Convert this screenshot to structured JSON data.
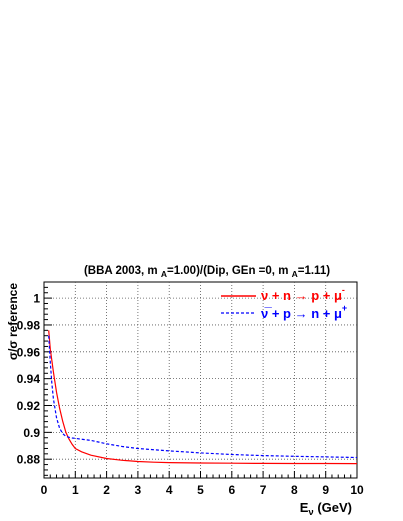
{
  "chart_data": {
    "type": "line",
    "title": "(BBA 2003, m A=1.00)/(Dip, GEn =0, m A=1.11)",
    "title_parts": {
      "pre1": "(BBA 2003, m ",
      "sub1": "A",
      "mid": "=1.00)/(Dip, GEn =0, m ",
      "sub2": "A",
      "post": "=1.11)"
    },
    "xlabel": "Eν (GeV)",
    "xlabel_parts": {
      "main": "E",
      "sub": "ν",
      "post": " (GeV)"
    },
    "ylabel": "σ/σ reference",
    "xlim": [
      0,
      10
    ],
    "ylim": [
      0.866,
      1.012
    ],
    "xticks": [
      0,
      1,
      2,
      3,
      4,
      5,
      6,
      7,
      8,
      9,
      10
    ],
    "yticks": [
      0.88,
      0.9,
      0.92,
      0.94,
      0.96,
      0.98,
      1
    ],
    "ytick_labels": [
      "0.88",
      "0.9",
      "0.92",
      "0.94",
      "0.96",
      "0.98",
      "1"
    ],
    "grid": true,
    "legend_position": "top-right",
    "series": [
      {
        "name": "ν + n → p + μ-",
        "legend_parts": [
          "ν + n → p + μ",
          "-"
        ],
        "color": "#ff0000",
        "dash": "solid",
        "x": [
          0.15,
          0.2,
          0.3,
          0.4,
          0.5,
          0.6,
          0.7,
          0.8,
          0.9,
          1.0,
          1.2,
          1.5,
          2.0,
          2.5,
          3.0,
          3.5,
          4.0,
          5.0,
          6.0,
          7.0,
          8.0,
          9.0,
          10.0
        ],
        "y": [
          0.976,
          0.962,
          0.945,
          0.93,
          0.918,
          0.908,
          0.9,
          0.895,
          0.891,
          0.888,
          0.8855,
          0.883,
          0.8805,
          0.8792,
          0.8783,
          0.8778,
          0.8775,
          0.8772,
          0.877,
          0.8769,
          0.8768,
          0.8768,
          0.8767
        ]
      },
      {
        "name": "ν̅ + p → n + μ+",
        "legend_parts": [
          "ν̅ + p → n + μ",
          "+"
        ],
        "color": "#0000ff",
        "dash": "dashed",
        "x": [
          0.15,
          0.2,
          0.25,
          0.3,
          0.4,
          0.5,
          0.6,
          0.7,
          0.8,
          0.9,
          1.0,
          1.5,
          2.0,
          2.5,
          3.0,
          4.0,
          5.0,
          6.0,
          7.0,
          8.0,
          9.0,
          10.0
        ],
        "y": [
          0.972,
          0.952,
          0.937,
          0.925,
          0.911,
          0.903,
          0.899,
          0.897,
          0.8963,
          0.8958,
          0.8955,
          0.894,
          0.8915,
          0.8895,
          0.888,
          0.8862,
          0.8847,
          0.8835,
          0.8827,
          0.8822,
          0.8817,
          0.8813
        ]
      }
    ]
  }
}
